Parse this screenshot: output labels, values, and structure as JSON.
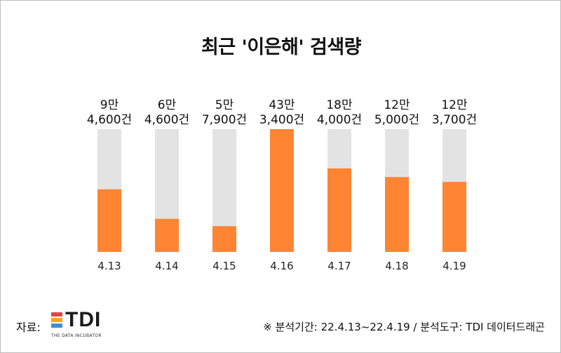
{
  "chart_data": {
    "type": "bar",
    "title": "최근 '이은해' 검색량",
    "categories": [
      "4.13",
      "4.14",
      "4.15",
      "4.16",
      "4.17",
      "4.18",
      "4.19"
    ],
    "values": [
      94600,
      64600,
      57900,
      433400,
      184000,
      125000,
      123700
    ],
    "value_labels": [
      [
        "9만",
        "4,600건"
      ],
      [
        "6만",
        "4,600건"
      ],
      [
        "5만",
        "7,900건"
      ],
      [
        "43만",
        "3,400건"
      ],
      [
        "18만",
        "4,000건"
      ],
      [
        "12만",
        "5,000건"
      ],
      [
        "12만",
        "3,700건"
      ]
    ],
    "bar_fill_fraction": [
      0.51,
      0.27,
      0.21,
      1.0,
      0.68,
      0.61,
      0.57
    ],
    "colors": {
      "bar": "#ff8533",
      "track": "#e3e3e3"
    }
  },
  "source": {
    "label": "자료:",
    "logo_text": "TDI",
    "logo_sub": "THE DATA INCUBATOR",
    "logo_colors": [
      "#e8443a",
      "#f6a623",
      "#3f8fd4"
    ]
  },
  "note": "※ 분석기간: 22.4.13~22.4.19 / 분석도구: TDI 데이터드래곤"
}
